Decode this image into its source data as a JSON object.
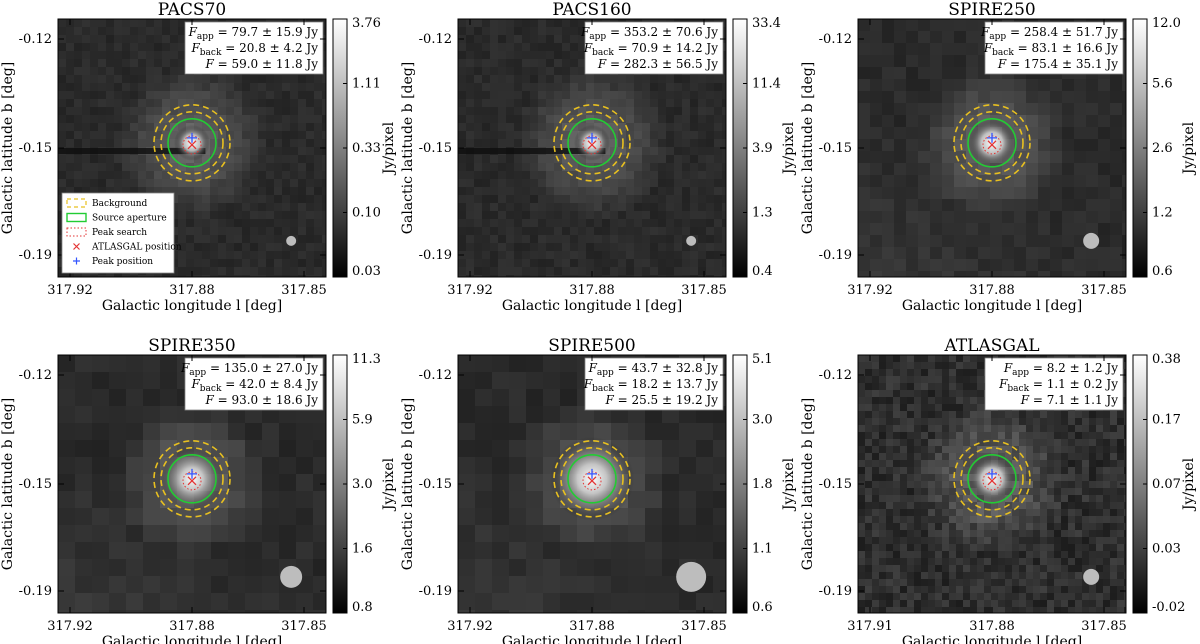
{
  "figure": {
    "xlabel_name": "Galactic longitude",
    "xlabel_unit": "l [deg]",
    "ylabel_name": "Galactic latitude",
    "ylabel_unit": "b [deg]",
    "colorbar_label": "Jy/pixel"
  },
  "legend": {
    "items": [
      {
        "label": "Background",
        "style": "dashed",
        "color": "#e8c020"
      },
      {
        "label": "Source aperture",
        "style": "solid",
        "color": "#22cc33"
      },
      {
        "label": "Peak search",
        "style": "dotted",
        "color": "#e33333"
      },
      {
        "label": "ATLASGAL position",
        "style": "x-marker",
        "color": "#e33333"
      },
      {
        "label": "Peak position",
        "style": "plus-marker",
        "color": "#3355ff"
      }
    ]
  },
  "chart_data": [
    {
      "type": "heatmap",
      "title": "PACS70",
      "x_ticks": [
        "317.92",
        "317.88",
        "317.85"
      ],
      "y_ticks": [
        "-0.12",
        "-0.15",
        "-0.19"
      ],
      "colorbar_ticks": [
        "3.76",
        "1.11",
        "0.33",
        "0.10",
        "0.03"
      ],
      "colorbar_label": "Jy/pixel",
      "colorbar_scale": "log",
      "flux": {
        "app": "79.7 ± 15.9 Jy",
        "back": "20.8 ± 4.2 Jy",
        "total": "59.0 ± 11.8 Jy"
      },
      "beam_size": "small",
      "pixel_scale": "fine",
      "has_legend": true
    },
    {
      "type": "heatmap",
      "title": "PACS160",
      "x_ticks": [
        "317.92",
        "317.88",
        "317.85"
      ],
      "y_ticks": [
        "-0.12",
        "-0.15",
        "-0.19"
      ],
      "colorbar_ticks": [
        "33.4",
        "11.4",
        "3.9",
        "1.3",
        "0.4"
      ],
      "colorbar_label": "Jy/pixel",
      "colorbar_scale": "log",
      "flux": {
        "app": "353.2 ± 70.6 Jy",
        "back": "70.9 ± 14.2 Jy",
        "total": "282.3 ± 56.5 Jy"
      },
      "beam_size": "small",
      "pixel_scale": "fine",
      "has_legend": false
    },
    {
      "type": "heatmap",
      "title": "SPIRE250",
      "x_ticks": [
        "317.92",
        "317.88",
        "317.85"
      ],
      "y_ticks": [
        "-0.12",
        "-0.15",
        "-0.19"
      ],
      "colorbar_ticks": [
        "12.0",
        "5.6",
        "2.6",
        "1.2",
        "0.6"
      ],
      "colorbar_label": "Jy/pixel",
      "colorbar_scale": "log",
      "flux": {
        "app": "258.4 ± 51.7 Jy",
        "back": "83.1 ± 16.6 Jy",
        "total": "175.4 ± 35.1 Jy"
      },
      "beam_size": "medium",
      "pixel_scale": "medium",
      "has_legend": false
    },
    {
      "type": "heatmap",
      "title": "SPIRE350",
      "x_ticks": [
        "317.92",
        "317.88",
        "317.85"
      ],
      "y_ticks": [
        "-0.12",
        "-0.15",
        "-0.19"
      ],
      "colorbar_ticks": [
        "11.3",
        "5.9",
        "3.0",
        "1.6",
        "0.8"
      ],
      "colorbar_label": "Jy/pixel",
      "colorbar_scale": "log",
      "flux": {
        "app": "135.0 ± 27.0 Jy",
        "back": "42.0 ± 8.4 Jy",
        "total": "93.0 ± 18.6 Jy"
      },
      "beam_size": "large",
      "pixel_scale": "coarse",
      "has_legend": false
    },
    {
      "type": "heatmap",
      "title": "SPIRE500",
      "x_ticks": [
        "317.92",
        "317.88",
        "317.85"
      ],
      "y_ticks": [
        "-0.12",
        "-0.15",
        "-0.19"
      ],
      "colorbar_ticks": [
        "5.1",
        "3.0",
        "1.8",
        "1.1",
        "0.6"
      ],
      "colorbar_label": "Jy/pixel",
      "colorbar_scale": "log",
      "flux": {
        "app": "43.7 ± 32.8 Jy",
        "back": "18.2 ± 13.7 Jy",
        "total": "25.5 ± 19.2 Jy"
      },
      "beam_size": "xlarge",
      "pixel_scale": "coarse",
      "has_legend": false
    },
    {
      "type": "heatmap",
      "title": "ATLASGAL",
      "x_ticks": [
        "317.91",
        "317.88",
        "317.85"
      ],
      "y_ticks": [
        "-0.12",
        "-0.15",
        "-0.19"
      ],
      "colorbar_ticks": [
        "0.38",
        "0.17",
        "0.07",
        "0.03",
        "-0.02"
      ],
      "colorbar_label": "Jy/pixel",
      "colorbar_scale": "log",
      "flux": {
        "app": "8.2 ± 1.2 Jy",
        "back": "1.1 ± 0.2 Jy",
        "total": "7.1 ± 1.1 Jy"
      },
      "beam_size": "medium",
      "pixel_scale": "noisy",
      "has_legend": false
    }
  ]
}
